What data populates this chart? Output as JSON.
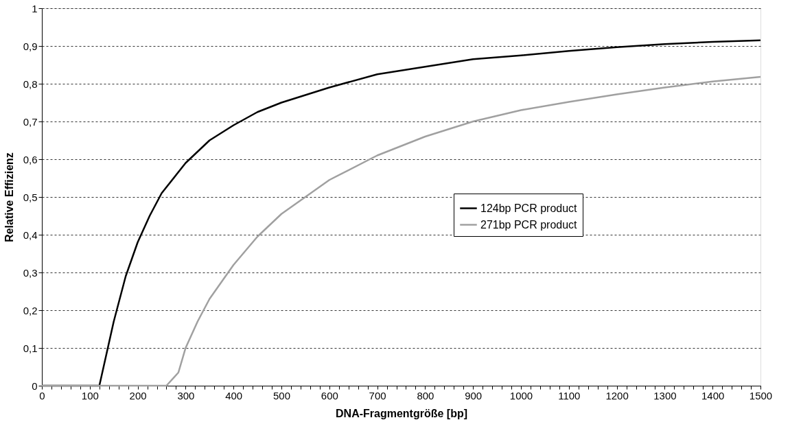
{
  "chart_data": {
    "type": "line",
    "xlabel": "DNA-Fragmentgröße [bp]",
    "ylabel": "Relative Effizienz",
    "xlim": [
      0,
      1500
    ],
    "ylim": [
      0,
      1
    ],
    "xticks": [
      0,
      {
        "value": 20,
        "label": null
      },
      {
        "value": 40,
        "label": null
      },
      {
        "value": 60,
        "label": null
      },
      {
        "value": 80,
        "label": null
      },
      100,
      {
        "value": 120,
        "label": null
      },
      {
        "value": 140,
        "label": null
      },
      {
        "value": 160,
        "label": null
      },
      {
        "value": 180,
        "label": null
      },
      200,
      {
        "value": 220,
        "label": null
      },
      {
        "value": 240,
        "label": null
      },
      {
        "value": 260,
        "label": null
      },
      {
        "value": 280,
        "label": null
      },
      300,
      {
        "value": 320,
        "label": null
      },
      {
        "value": 340,
        "label": null
      },
      {
        "value": 360,
        "label": null
      },
      {
        "value": 380,
        "label": null
      },
      400,
      {
        "value": 420,
        "label": null
      },
      {
        "value": 440,
        "label": null
      },
      {
        "value": 460,
        "label": null
      },
      {
        "value": 480,
        "label": null
      },
      500,
      {
        "value": 520,
        "label": null
      },
      {
        "value": 540,
        "label": null
      },
      {
        "value": 560,
        "label": null
      },
      {
        "value": 580,
        "label": null
      },
      600,
      {
        "value": 620,
        "label": null
      },
      {
        "value": 640,
        "label": null
      },
      {
        "value": 660,
        "label": null
      },
      {
        "value": 680,
        "label": null
      },
      700,
      {
        "value": 720,
        "label": null
      },
      {
        "value": 740,
        "label": null
      },
      {
        "value": 760,
        "label": null
      },
      {
        "value": 780,
        "label": null
      },
      800,
      {
        "value": 820,
        "label": null
      },
      {
        "value": 840,
        "label": null
      },
      {
        "value": 860,
        "label": null
      },
      {
        "value": 880,
        "label": null
      },
      900,
      {
        "value": 920,
        "label": null
      },
      {
        "value": 940,
        "label": null
      },
      {
        "value": 960,
        "label": null
      },
      {
        "value": 980,
        "label": null
      },
      1000,
      {
        "value": 1020,
        "label": null
      },
      {
        "value": 1040,
        "label": null
      },
      {
        "value": 1060,
        "label": null
      },
      {
        "value": 1080,
        "label": null
      },
      1100,
      {
        "value": 1120,
        "label": null
      },
      {
        "value": 1140,
        "label": null
      },
      {
        "value": 1160,
        "label": null
      },
      {
        "value": 1180,
        "label": null
      },
      1200,
      {
        "value": 1220,
        "label": null
      },
      {
        "value": 1240,
        "label": null
      },
      {
        "value": 1260,
        "label": null
      },
      {
        "value": 1280,
        "label": null
      },
      1300,
      {
        "value": 1320,
        "label": null
      },
      {
        "value": 1340,
        "label": null
      },
      {
        "value": 1360,
        "label": null
      },
      {
        "value": 1380,
        "label": null
      },
      1400,
      {
        "value": 1420,
        "label": null
      },
      {
        "value": 1440,
        "label": null
      },
      {
        "value": 1460,
        "label": null
      },
      {
        "value": 1480,
        "label": null
      },
      1500
    ],
    "yticks": [
      0,
      {
        "value": 0.1,
        "label": "0,1"
      },
      {
        "value": 0.2,
        "label": "0,2"
      },
      {
        "value": 0.3,
        "label": "0,3"
      },
      {
        "value": 0.4,
        "label": "0,4"
      },
      {
        "value": 0.5,
        "label": "0,5"
      },
      {
        "value": 0.6,
        "label": "0,6"
      },
      {
        "value": 0.7,
        "label": "0,7"
      },
      {
        "value": 0.8,
        "label": "0,8"
      },
      {
        "value": 0.9,
        "label": "0,9"
      },
      1
    ],
    "grid": "y",
    "legend": "right",
    "marker": "none",
    "line_style": "solid",
    "series": [
      {
        "name": "124bp PCR product",
        "color": "#000000",
        "x": [
          0,
          100,
          120,
          150,
          175,
          200,
          225,
          250,
          300,
          350,
          400,
          450,
          500,
          600,
          700,
          800,
          900,
          1000,
          1100,
          1200,
          1300,
          1400,
          1500
        ],
        "values": [
          0,
          0,
          0,
          0.17,
          0.29,
          0.38,
          0.45,
          0.51,
          0.59,
          0.65,
          0.69,
          0.725,
          0.75,
          0.79,
          0.825,
          0.845,
          0.865,
          0.875,
          0.887,
          0.897,
          0.905,
          0.911,
          0.915
        ]
      },
      {
        "name": "271bp PCR product",
        "color": "#a0a0a0",
        "x": [
          0,
          100,
          200,
          260,
          285,
          300,
          325,
          350,
          400,
          450,
          500,
          600,
          700,
          800,
          900,
          1000,
          1100,
          1200,
          1300,
          1400,
          1500
        ],
        "values": [
          0,
          0,
          0,
          0,
          0.035,
          0.1,
          0.17,
          0.23,
          0.32,
          0.395,
          0.455,
          0.545,
          0.61,
          0.66,
          0.7,
          0.73,
          0.752,
          0.772,
          0.79,
          0.806,
          0.818
        ]
      }
    ]
  }
}
